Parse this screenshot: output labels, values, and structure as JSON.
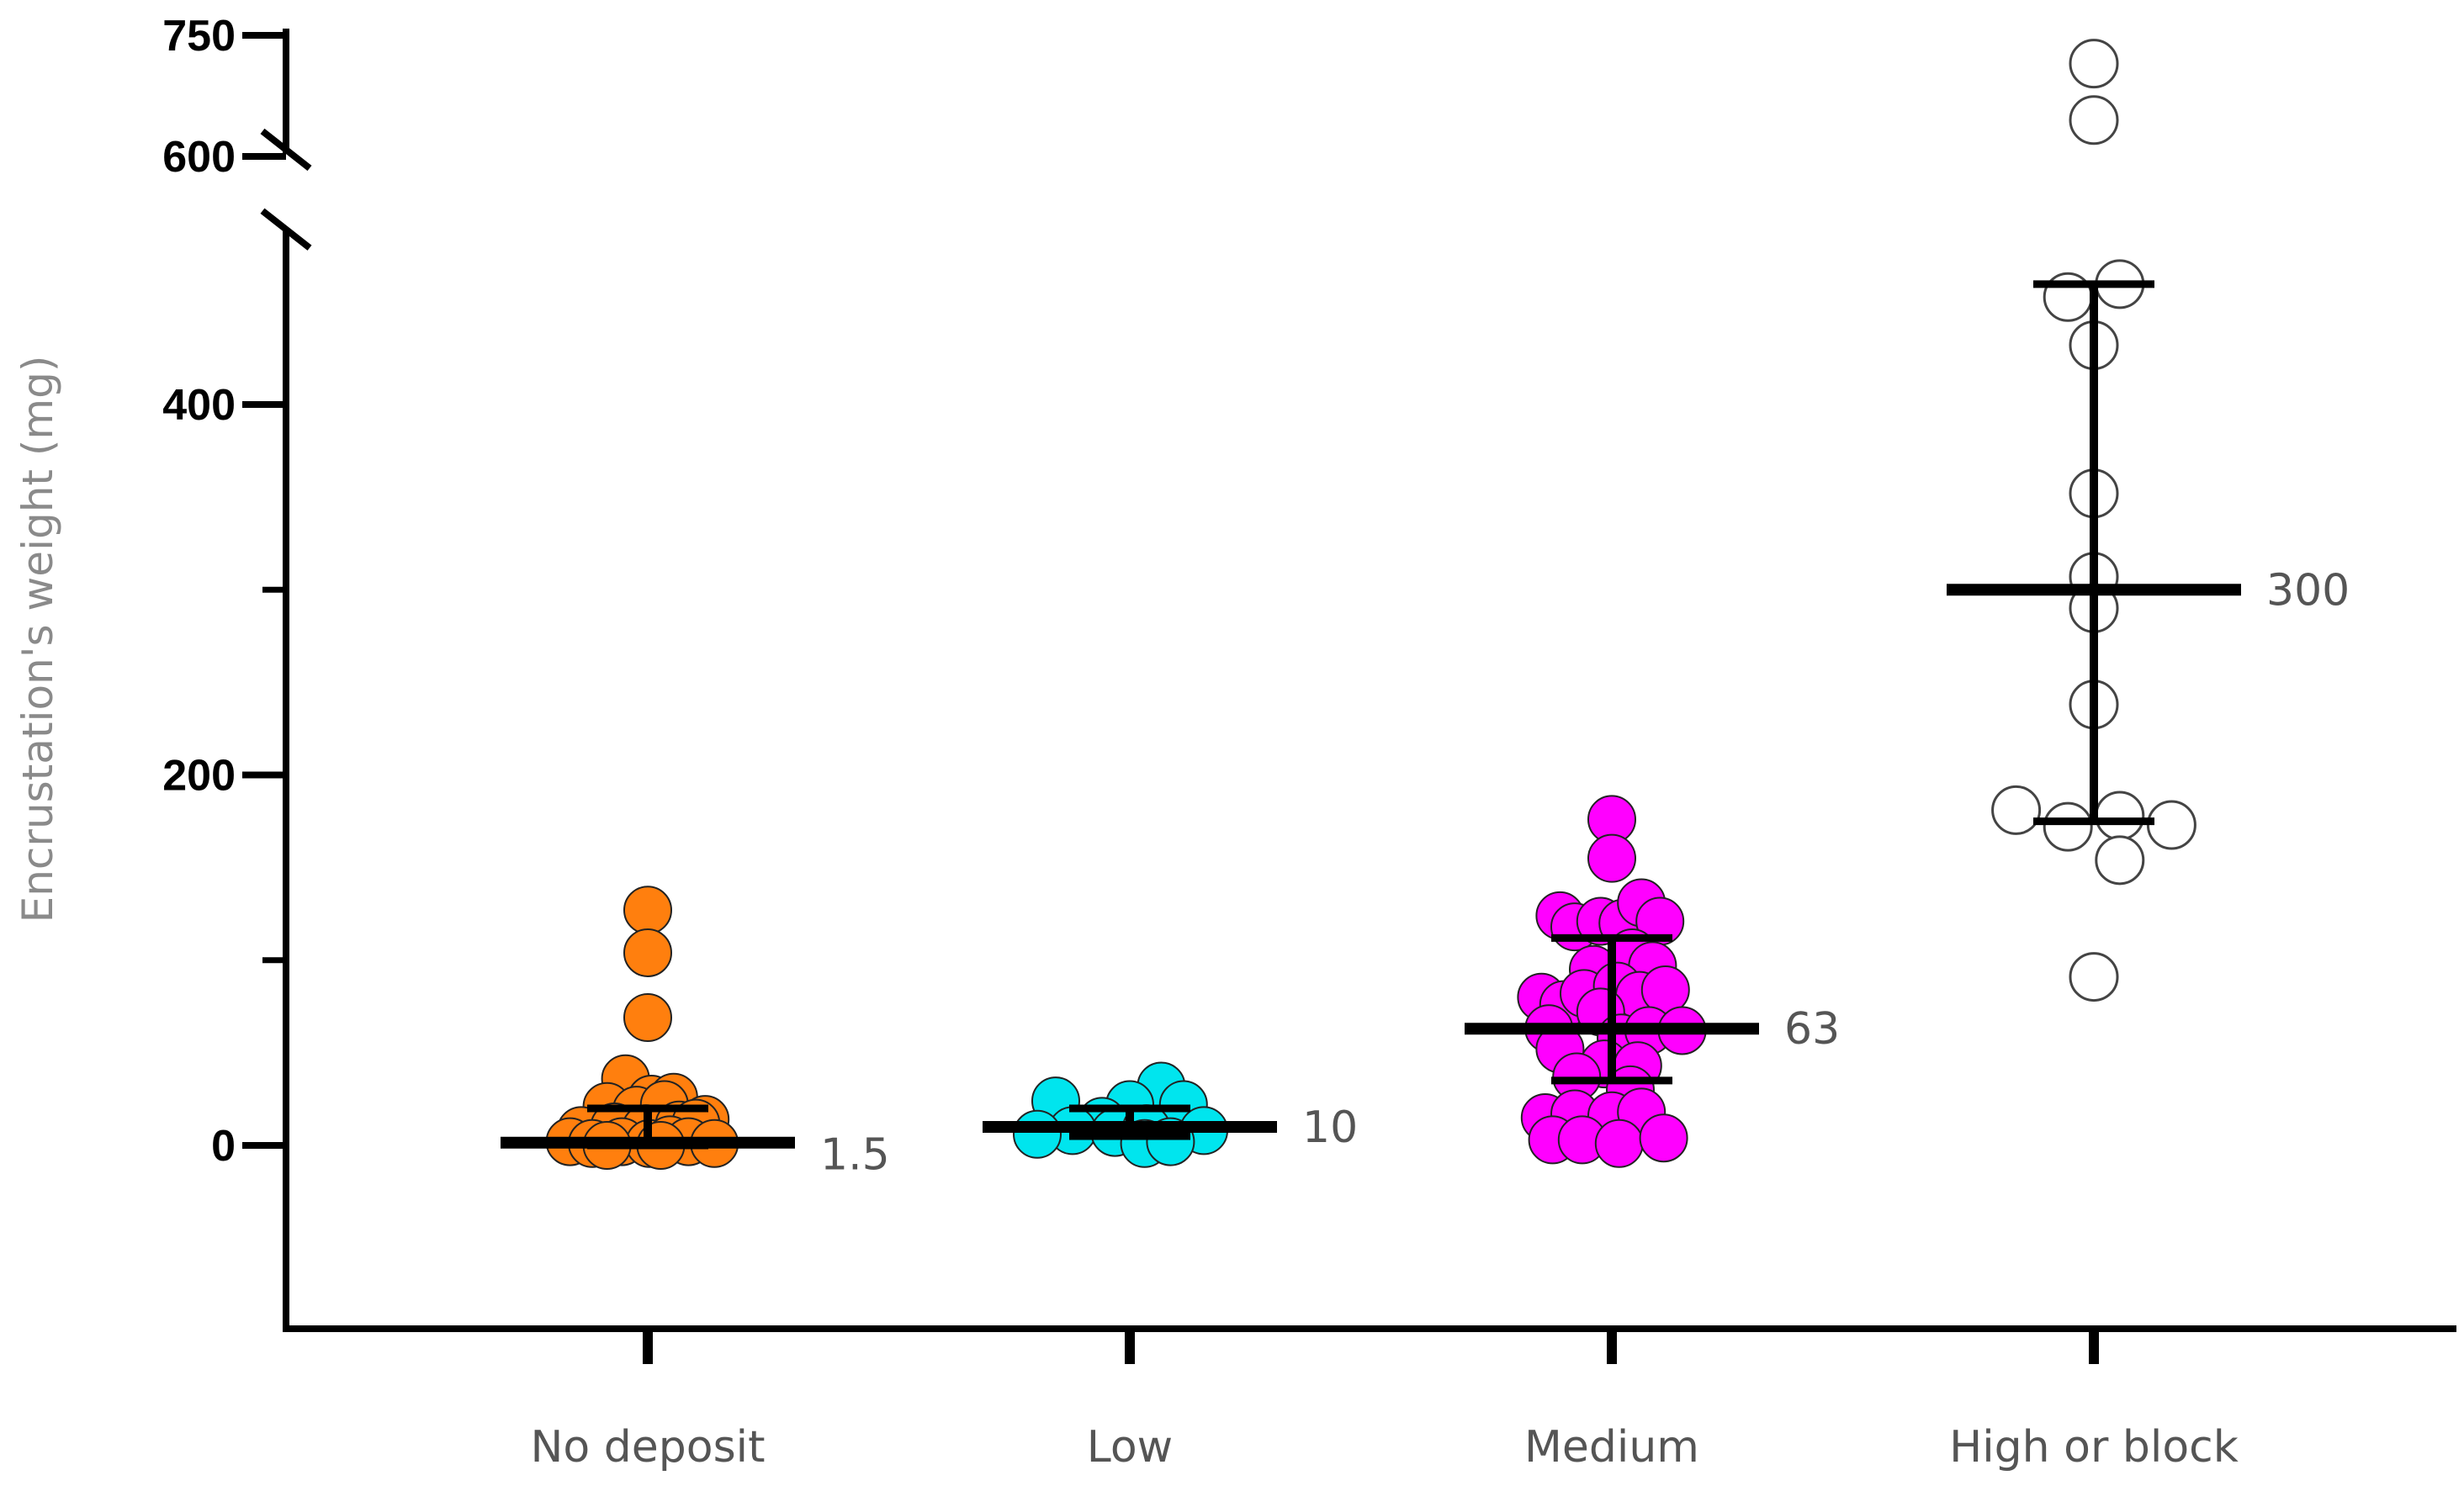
{
  "chart_data": {
    "type": "scatter",
    "title": "",
    "xlabel": "",
    "ylabel": "Encrustation's weight (mg)",
    "axis_break": {
      "from": 500,
      "to": 600
    },
    "ylim_lower": [
      -90,
      500
    ],
    "ylim_upper": [
      600,
      750
    ],
    "yticks_lower": [
      0,
      200,
      400
    ],
    "yticks_upper": [
      600,
      750
    ],
    "minor_ticks": [
      100,
      300
    ],
    "grid": false,
    "legend": "none",
    "categories": [
      "No deposit",
      "Low",
      "Medium",
      "High or block"
    ],
    "series": [
      {
        "category": "No deposit",
        "color": "#ff7f0e",
        "filled": true,
        "median": 1.5,
        "median_label": "1.5",
        "iqr": [
          0,
          20
        ],
        "points": [
          {
            "x": 0,
            "y": 127
          },
          {
            "x": 0,
            "y": 104
          },
          {
            "x": 0,
            "y": 69
          },
          {
            "x": -0.6,
            "y": 36
          },
          {
            "x": 0.1,
            "y": 25
          },
          {
            "x": 0.7,
            "y": 26
          },
          {
            "x": -1.1,
            "y": 21
          },
          {
            "x": -0.3,
            "y": 19
          },
          {
            "x": 0.45,
            "y": 22
          },
          {
            "x": 1.55,
            "y": 14
          },
          {
            "x": -1.8,
            "y": 8
          },
          {
            "x": -0.9,
            "y": 10
          },
          {
            "x": -0.05,
            "y": 9
          },
          {
            "x": 0.85,
            "y": 11
          },
          {
            "x": 1.3,
            "y": 12
          },
          {
            "x": -2.1,
            "y": 2
          },
          {
            "x": -1.5,
            "y": 1
          },
          {
            "x": -0.7,
            "y": 2
          },
          {
            "x": 0.05,
            "y": 1
          },
          {
            "x": 0.6,
            "y": 3
          },
          {
            "x": 1.1,
            "y": 2
          },
          {
            "x": 1.8,
            "y": 1
          },
          {
            "x": -1.1,
            "y": 0
          },
          {
            "x": 0.35,
            "y": 0
          }
        ]
      },
      {
        "category": "Low",
        "color": "#00e5ee",
        "filled": true,
        "median": 10,
        "median_label": "10",
        "iqr": [
          5,
          20
        ],
        "points": [
          {
            "x": 0.85,
            "y": 32
          },
          {
            "x": -2.0,
            "y": 24
          },
          {
            "x": 0.0,
            "y": 22
          },
          {
            "x": 1.45,
            "y": 22
          },
          {
            "x": -0.75,
            "y": 13
          },
          {
            "x": -1.55,
            "y": 8
          },
          {
            "x": -0.4,
            "y": 7
          },
          {
            "x": 0.45,
            "y": 9
          },
          {
            "x": 2.0,
            "y": 8
          },
          {
            "x": -2.5,
            "y": 6
          },
          {
            "x": 0.4,
            "y": 1
          },
          {
            "x": 1.1,
            "y": 2
          }
        ]
      },
      {
        "category": "Medium",
        "color": "#ff00ff",
        "filled": true,
        "median": 63,
        "median_label": "63",
        "iqr": [
          35,
          112
        ],
        "points": [
          {
            "x": 0,
            "y": 176
          },
          {
            "x": 0,
            "y": 155
          },
          {
            "x": -1.4,
            "y": 124
          },
          {
            "x": -1.0,
            "y": 118
          },
          {
            "x": -0.3,
            "y": 121
          },
          {
            "x": 0.3,
            "y": 120
          },
          {
            "x": 0.8,
            "y": 131
          },
          {
            "x": 1.3,
            "y": 121
          },
          {
            "x": -0.5,
            "y": 95
          },
          {
            "x": 0.55,
            "y": 104
          },
          {
            "x": 1.1,
            "y": 97
          },
          {
            "x": -1.9,
            "y": 80
          },
          {
            "x": -1.3,
            "y": 76
          },
          {
            "x": -0.75,
            "y": 82
          },
          {
            "x": 0.15,
            "y": 86
          },
          {
            "x": 0.75,
            "y": 81
          },
          {
            "x": 1.45,
            "y": 84
          },
          {
            "x": -1.7,
            "y": 63
          },
          {
            "x": -0.3,
            "y": 72
          },
          {
            "x": 0.25,
            "y": 58
          },
          {
            "x": 1.0,
            "y": 62
          },
          {
            "x": 1.9,
            "y": 62
          },
          {
            "x": -1.4,
            "y": 52
          },
          {
            "x": -0.2,
            "y": 44
          },
          {
            "x": 0.7,
            "y": 43
          },
          {
            "x": -0.95,
            "y": 37
          },
          {
            "x": 0.5,
            "y": 30
          },
          {
            "x": -1.8,
            "y": 15
          },
          {
            "x": -1.0,
            "y": 17
          },
          {
            "x": 0.0,
            "y": 16
          },
          {
            "x": 0.8,
            "y": 18
          },
          {
            "x": -1.6,
            "y": 3
          },
          {
            "x": -0.8,
            "y": 3
          },
          {
            "x": 0.2,
            "y": 1
          },
          {
            "x": 1.4,
            "y": 4
          }
        ]
      },
      {
        "category": "High or block",
        "color": "#ffffff",
        "filled": false,
        "median": 300,
        "median_label": "300",
        "iqr": [
          175,
          465
        ],
        "points": [
          {
            "x": 0,
            "y": 715
          },
          {
            "x": 0,
            "y": 645
          },
          {
            "x": -0.7,
            "y": 458
          },
          {
            "x": 0.7,
            "y": 465
          },
          {
            "x": 0.0,
            "y": 432
          },
          {
            "x": 0.0,
            "y": 352
          },
          {
            "x": 0.0,
            "y": 307
          },
          {
            "x": 0.0,
            "y": 290
          },
          {
            "x": 0.0,
            "y": 238
          },
          {
            "x": -2.1,
            "y": 181
          },
          {
            "x": -0.7,
            "y": 172
          },
          {
            "x": 0.7,
            "y": 178
          },
          {
            "x": 2.1,
            "y": 173
          },
          {
            "x": 0.7,
            "y": 154
          },
          {
            "x": 0.0,
            "y": 91
          }
        ]
      }
    ]
  }
}
